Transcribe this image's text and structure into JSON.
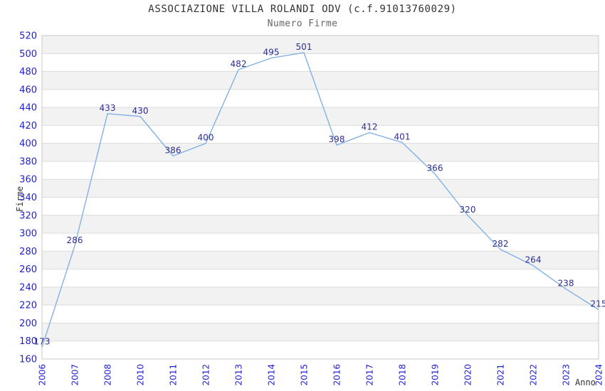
{
  "title": "ASSOCIAZIONE VILLA ROLANDI ODV (c.f.91013760029)",
  "subtitle": "Numero Firme",
  "chart_data": {
    "type": "line",
    "title": "ASSOCIAZIONE VILLA ROLANDI ODV (c.f.91013760029)",
    "subtitle": "Numero Firme",
    "xlabel": "Anno",
    "ylabel": "Firme",
    "categories": [
      "2006",
      "2007",
      "2008",
      "2010",
      "2011",
      "2012",
      "2013",
      "2014",
      "2015",
      "2016",
      "2017",
      "2018",
      "2019",
      "2020",
      "2021",
      "2022",
      "2023",
      "2024"
    ],
    "values": [
      173,
      286,
      433,
      430,
      386,
      400,
      482,
      495,
      501,
      398,
      412,
      401,
      366,
      320,
      282,
      264,
      238,
      215
    ],
    "ylim": [
      160,
      520
    ],
    "ytick_step": 20,
    "grid": "horizontal",
    "legend": "none",
    "point_labels_shown": true,
    "colors": {
      "line": "#82b1e6",
      "point_label": "#2f2f8a",
      "tick_label": "#1f1fd1",
      "title": "#333333",
      "subtitle": "#666666",
      "axis_name": "#333333",
      "band": "#f2f2f2",
      "gridline": "#dcdcdc",
      "plot_border": "#c9c9c9",
      "background": "#ffffff"
    }
  }
}
